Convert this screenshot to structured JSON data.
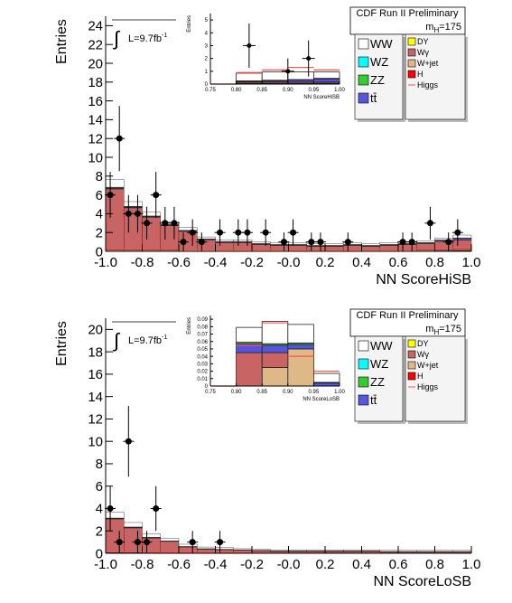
{
  "chart_data": [
    {
      "type": "histogram",
      "title": "CDF Run II Preliminary",
      "mass": {
        "symbol": "m",
        "subscript": "H",
        "value": "=175"
      },
      "lumi": {
        "symbol": "∫",
        "text": "L=9.7fb",
        "exponent": "-1"
      },
      "xlabel": "NN ScoreHiSB",
      "ylabel": "Entries",
      "xlim": [
        -1,
        1
      ],
      "ylim": [
        0,
        25
      ],
      "xticks": [
        {
          "value": -1,
          "label": "-1.0"
        },
        {
          "value": -0.8,
          "label": "-0.8"
        },
        {
          "value": -0.6,
          "label": "-0.6"
        },
        {
          "value": -0.4,
          "label": "-0.4"
        },
        {
          "value": -0.2,
          "label": "-0.2"
        },
        {
          "value": 0,
          "label": "-0.0"
        },
        {
          "value": 0.2,
          "label": "0.2"
        },
        {
          "value": 0.4,
          "label": "0.4"
        },
        {
          "value": 0.6,
          "label": "0.6"
        },
        {
          "value": 0.8,
          "label": "0.8"
        },
        {
          "value": 1,
          "label": "1.0"
        }
      ],
      "yticks": [
        0,
        2,
        4,
        6,
        8,
        10,
        12,
        14,
        16,
        18,
        20,
        22,
        24
      ],
      "bins": [
        -1,
        -0.9,
        -0.8,
        -0.7,
        -0.6,
        -0.5,
        -0.4,
        -0.3,
        -0.2,
        -0.1,
        0,
        0.1,
        0.2,
        0.3,
        0.4,
        0.5,
        0.6,
        0.7,
        0.8,
        0.9,
        1
      ],
      "series": [
        {
          "name": "WW",
          "color": "#ffffff",
          "values": [
            0.8,
            0.5,
            0.4,
            0.3,
            0.3,
            0.2,
            0.2,
            0.2,
            0.2,
            0.2,
            0.2,
            0.2,
            0.2,
            0.2,
            0.2,
            0.2,
            0.2,
            0.2,
            0.2,
            0.3
          ]
        },
        {
          "name": "WZ",
          "color": "#00ffff",
          "values": [
            0.05,
            0.04,
            0.03,
            0.03,
            0.02,
            0.02,
            0.02,
            0.02,
            0.02,
            0.02,
            0.02,
            0.02,
            0.02,
            0.02,
            0.02,
            0.02,
            0.02,
            0.02,
            0.02,
            0.03
          ]
        },
        {
          "name": "ZZ",
          "color": "#33cc33",
          "values": [
            0.05,
            0.04,
            0.03,
            0.03,
            0.02,
            0.02,
            0.02,
            0.02,
            0.02,
            0.02,
            0.02,
            0.02,
            0.02,
            0.02,
            0.02,
            0.02,
            0.02,
            0.02,
            0.02,
            0.03
          ]
        },
        {
          "name": "tt̄",
          "color": "#5555dd",
          "values": [
            0.05,
            0.05,
            0.05,
            0.05,
            0.05,
            0.05,
            0.05,
            0.05,
            0.05,
            0.05,
            0.05,
            0.05,
            0.05,
            0.05,
            0.05,
            0.05,
            0.05,
            0.05,
            0.1,
            0.15
          ]
        },
        {
          "name": "DY",
          "color": "#ffff00",
          "values": [
            0.05,
            0.04,
            0.03,
            0.02,
            0.02,
            0.02,
            0.02,
            0.02,
            0.02,
            0.02,
            0.02,
            0.02,
            0.02,
            0.02,
            0.02,
            0.02,
            0.02,
            0.02,
            0.02,
            0.02
          ]
        },
        {
          "name": "Wγ",
          "color": "#c86464",
          "values": [
            6.5,
            4.5,
            3.5,
            2.6,
            2.0,
            1.1,
            0.8,
            0.8,
            0.6,
            0.5,
            0.5,
            0.4,
            0.4,
            0.5,
            0.4,
            0.5,
            0.6,
            0.7,
            0.9,
            1.0
          ]
        },
        {
          "name": "W+jet",
          "color": "#deb887",
          "values": [
            0.1,
            0.1,
            0.1,
            0.1,
            0.1,
            0.1,
            0.1,
            0.1,
            0.1,
            0.1,
            0.1,
            0.1,
            0.1,
            0.1,
            0.1,
            0.1,
            0.1,
            0.1,
            0.1,
            0.1
          ]
        },
        {
          "name": "H",
          "color": "#ff0000",
          "values": [
            0.02,
            0.02,
            0.02,
            0.02,
            0.02,
            0.02,
            0.02,
            0.02,
            0.02,
            0.02,
            0.02,
            0.02,
            0.02,
            0.02,
            0.02,
            0.02,
            0.02,
            0.02,
            0.05,
            0.1
          ]
        },
        {
          "name": "Higgs",
          "color": "#ff5050",
          "line": true,
          "values": [
            0.3,
            0.25,
            0.2,
            0.2,
            0.15,
            0.15,
            0.15,
            0.15,
            0.15,
            0.15,
            0.15,
            0.15,
            0.15,
            0.15,
            0.15,
            0.15,
            0.15,
            0.2,
            0.3,
            0.4
          ]
        }
      ],
      "points": {
        "x": [
          -0.975,
          -0.925,
          -0.875,
          -0.825,
          -0.775,
          -0.725,
          -0.675,
          -0.625,
          -0.575,
          -0.525,
          -0.475,
          -0.375,
          -0.275,
          -0.225,
          -0.125,
          -0.025,
          0.025,
          0.125,
          0.175,
          0.325,
          0.625,
          0.675,
          0.775,
          0.875,
          0.925
        ],
        "y": [
          6,
          12,
          4,
          4,
          3,
          6,
          3,
          3,
          1,
          2,
          1,
          2,
          2,
          2,
          2,
          1,
          2,
          1,
          1,
          1,
          1,
          1,
          3,
          1,
          2
        ],
        "yerr": [
          2.45,
          3.46,
          2,
          2,
          1.73,
          2.45,
          1.73,
          1.73,
          1,
          1.41,
          1,
          1.41,
          1.41,
          1.41,
          1.41,
          1,
          1.41,
          1,
          1,
          1,
          1,
          1,
          1.73,
          1,
          1.41
        ]
      },
      "inset": {
        "xlabel": "NN ScoreHiSB",
        "ylabel": "Entries",
        "xlim": [
          0.75,
          1
        ],
        "ylim": [
          0,
          5.5
        ],
        "xticks": [
          {
            "value": 0.75,
            "label": "0.75"
          },
          {
            "value": 0.8,
            "label": "0.80"
          },
          {
            "value": 0.85,
            "label": "0.85"
          },
          {
            "value": 0.9,
            "label": "0.90"
          },
          {
            "value": 0.95,
            "label": "0.95"
          },
          {
            "value": 1,
            "label": "1.00"
          }
        ],
        "yticks": [
          0,
          1,
          2,
          3,
          4,
          5
        ],
        "bins": [
          0.75,
          0.8,
          0.85,
          0.9,
          0.95,
          1
        ],
        "series_values": [
          [
            0,
            0.6,
            0.65,
            0.6,
            0.5
          ],
          [
            0,
            0.02,
            0.02,
            0.02,
            0.02
          ],
          [
            0,
            0.02,
            0.02,
            0.02,
            0.02
          ],
          [
            0,
            0.05,
            0.1,
            0.15,
            0.25
          ],
          [
            0,
            0,
            0,
            0,
            0
          ],
          [
            0,
            0.1,
            0.1,
            0.1,
            0.1
          ],
          [
            0,
            0.05,
            0.05,
            0.05,
            0.05
          ],
          [
            0,
            0.01,
            0.01,
            0.01,
            0.01
          ],
          [
            0,
            0.9,
            1.1,
            1.3,
            1.1
          ]
        ],
        "points": {
          "x": [
            0.825,
            0.9,
            0.94
          ],
          "y": [
            3,
            1,
            2
          ],
          "yerr": [
            1.73,
            1,
            1.41
          ]
        }
      }
    },
    {
      "type": "histogram",
      "title": "CDF Run II Preliminary",
      "mass": {
        "symbol": "m",
        "subscript": "H",
        "value": "=175"
      },
      "lumi": {
        "symbol": "∫",
        "text": "L=9.7fb",
        "exponent": "-1"
      },
      "xlabel": "NN ScoreLoSB",
      "ylabel": "Entries",
      "xlim": [
        -1,
        1
      ],
      "ylim": [
        0,
        21
      ],
      "xticks": [
        {
          "value": -1,
          "label": "-1.0"
        },
        {
          "value": -0.8,
          "label": "-0.8"
        },
        {
          "value": -0.6,
          "label": "-0.6"
        },
        {
          "value": -0.4,
          "label": "-0.4"
        },
        {
          "value": -0.2,
          "label": "-0.2"
        },
        {
          "value": 0,
          "label": "-0.0"
        },
        {
          "value": 0.2,
          "label": "0.2"
        },
        {
          "value": 0.4,
          "label": "0.4"
        },
        {
          "value": 0.6,
          "label": "0.6"
        },
        {
          "value": 0.8,
          "label": "0.8"
        },
        {
          "value": 1,
          "label": "1.0"
        }
      ],
      "yticks": [
        0,
        2,
        4,
        6,
        8,
        10,
        12,
        14,
        16,
        18,
        20
      ],
      "bins": [
        -1,
        -0.9,
        -0.8,
        -0.7,
        -0.6,
        -0.5,
        -0.4,
        -0.3,
        -0.2,
        -0.1,
        0,
        0.1,
        0.2,
        0.3,
        0.4,
        0.5,
        0.6,
        0.7,
        0.8,
        0.9,
        1
      ],
      "series": [
        {
          "name": "WW",
          "color": "#ffffff",
          "values": [
            0.5,
            0.4,
            0.3,
            0.2,
            0.2,
            0.15,
            0.15,
            0.1,
            0.1,
            0.1,
            0.1,
            0.1,
            0.1,
            0.1,
            0.1,
            0.1,
            0.1,
            0.1,
            0.1,
            0.1
          ]
        },
        {
          "name": "WZ",
          "color": "#00ffff",
          "values": [
            0.02,
            0.02,
            0.02,
            0.01,
            0.01,
            0.01,
            0.01,
            0.01,
            0.01,
            0.01,
            0.01,
            0.01,
            0.01,
            0.01,
            0.01,
            0.01,
            0.01,
            0.01,
            0.01,
            0.01
          ]
        },
        {
          "name": "ZZ",
          "color": "#33cc33",
          "values": [
            0.02,
            0.02,
            0.02,
            0.01,
            0.01,
            0.01,
            0.01,
            0.01,
            0.01,
            0.01,
            0.01,
            0.01,
            0.01,
            0.01,
            0.01,
            0.01,
            0.01,
            0.01,
            0.01,
            0.01
          ]
        },
        {
          "name": "tt̄",
          "color": "#5555dd",
          "values": [
            0.03,
            0.03,
            0.02,
            0.02,
            0.02,
            0.02,
            0.02,
            0.02,
            0.02,
            0.02,
            0.02,
            0.02,
            0.02,
            0.02,
            0.02,
            0.02,
            0.02,
            0.02,
            0.02,
            0.02
          ]
        },
        {
          "name": "DY",
          "color": "#ffff00",
          "values": [
            0.02,
            0.02,
            0.01,
            0.01,
            0.01,
            0.01,
            0.01,
            0.01,
            0.01,
            0.01,
            0.01,
            0.01,
            0.01,
            0.01,
            0.01,
            0.01,
            0.01,
            0.01,
            0.01,
            0.01
          ]
        },
        {
          "name": "Wγ",
          "color": "#c86464",
          "values": [
            3.0,
            2.2,
            1.3,
            1.0,
            0.5,
            0.3,
            0.25,
            0.2,
            0.15,
            0.1,
            0.1,
            0.1,
            0.1,
            0.1,
            0.1,
            0.05,
            0.05,
            0.05,
            0.05,
            0.05
          ]
        },
        {
          "name": "W+jet",
          "color": "#deb887",
          "values": [
            0.05,
            0.05,
            0.05,
            0.05,
            0.05,
            0.05,
            0.05,
            0.05,
            0.05,
            0.05,
            0.05,
            0.05,
            0.05,
            0.05,
            0.05,
            0.05,
            0.05,
            0.05,
            0.05,
            0.05
          ]
        },
        {
          "name": "H",
          "color": "#ff0000",
          "values": [
            0.01,
            0.01,
            0.01,
            0.01,
            0.01,
            0.01,
            0.01,
            0.01,
            0.01,
            0.01,
            0.01,
            0.01,
            0.01,
            0.01,
            0.01,
            0.01,
            0.01,
            0.01,
            0.01,
            0.01
          ]
        },
        {
          "name": "Higgs",
          "color": "#ff5050",
          "line": true,
          "values": [
            0.15,
            0.12,
            0.1,
            0.08,
            0.06,
            0.05,
            0.05,
            0.05,
            0.04,
            0.04,
            0.04,
            0.04,
            0.03,
            0.03,
            0.03,
            0.03,
            0.03,
            0.03,
            0.03,
            0.03
          ]
        }
      ],
      "points": {
        "x": [
          -0.975,
          -0.925,
          -0.875,
          -0.825,
          -0.775,
          -0.725,
          -0.525,
          -0.375
        ],
        "y": [
          4,
          1,
          10,
          1,
          1,
          4,
          1,
          1
        ],
        "yerr": [
          2,
          1,
          3.16,
          1,
          1,
          2,
          1,
          1
        ]
      },
      "inset": {
        "xlabel": "NN ScoreLoSB",
        "ylabel": "Entries",
        "xlim": [
          0.75,
          1
        ],
        "ylim": [
          0,
          0.095
        ],
        "xticks": [
          {
            "value": 0.75,
            "label": "0.75"
          },
          {
            "value": 0.8,
            "label": "0.80"
          },
          {
            "value": 0.85,
            "label": "0.85"
          },
          {
            "value": 0.9,
            "label": "0.90"
          },
          {
            "value": 0.95,
            "label": "0.95"
          },
          {
            "value": 1,
            "label": "1.00"
          }
        ],
        "yticks": [
          0,
          0.01,
          0.02,
          0.03,
          0.04,
          0.05,
          0.06,
          0.07,
          0.08,
          0.09
        ],
        "bins": [
          0.75,
          0.8,
          0.85,
          0.9,
          0.95,
          1
        ],
        "series_values": [
          [
            0,
            0.02,
            0.03,
            0.025,
            0.012
          ],
          [
            0,
            0,
            0,
            0,
            0
          ],
          [
            0,
            0.002,
            0.002,
            0.002,
            0.001
          ],
          [
            0,
            0.012,
            0.01,
            0.006,
            0.004
          ],
          [
            0,
            0,
            0,
            0,
            0
          ],
          [
            0,
            0.045,
            0.02,
            0,
            0
          ],
          [
            0,
            0,
            0.025,
            0.05,
            0
          ],
          [
            0,
            0,
            0,
            0,
            0
          ],
          [
            0,
            0.055,
            0.085,
            0.04,
            0.02
          ]
        ]
      }
    }
  ]
}
